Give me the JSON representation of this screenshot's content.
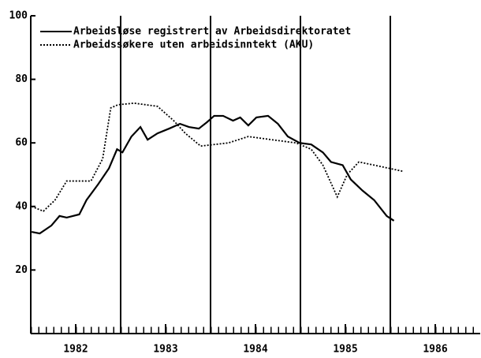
{
  "chart_data": {
    "type": "line",
    "xlim": [
      1982,
      1987
    ],
    "xticks": [
      {
        "value": 1982.5,
        "label": "1982"
      },
      {
        "value": 1983.5,
        "label": "1983"
      },
      {
        "value": 1984.5,
        "label": "1984"
      },
      {
        "value": 1985.5,
        "label": "1985"
      },
      {
        "value": 1986.5,
        "label": "1986"
      }
    ],
    "vlines": [
      1983,
      1984,
      1985,
      1986
    ],
    "ylim": [
      0,
      100
    ],
    "yticks": [
      20,
      40,
      60,
      80,
      100
    ],
    "legend": "upper left",
    "series": [
      {
        "name": "Arbeidsløse registrert av Arbeidsdirektoratet",
        "color": "#000000",
        "dash": "solid",
        "x": [
          1982.01,
          1982.1,
          1982.23,
          1982.32,
          1982.4,
          1982.54,
          1982.62,
          1982.75,
          1982.87,
          1982.96,
          1983.02,
          1983.12,
          1983.22,
          1983.3,
          1983.41,
          1983.54,
          1983.66,
          1983.76,
          1983.87,
          1983.96,
          1984.04,
          1984.14,
          1984.25,
          1984.33,
          1984.42,
          1984.51,
          1984.64,
          1984.75,
          1984.86,
          1984.99,
          1985.12,
          1985.25,
          1985.34,
          1985.47,
          1985.56,
          1985.69,
          1985.82,
          1985.96,
          1986.04
        ],
        "values": [
          32,
          31.5,
          34,
          37,
          36.5,
          37.5,
          42,
          47,
          52,
          58,
          57,
          62,
          65,
          61,
          63,
          64.5,
          66,
          65,
          64.5,
          66.5,
          68.5,
          68.5,
          67,
          68,
          65.5,
          68,
          68.5,
          66,
          62,
          60,
          59.5,
          57,
          54,
          53,
          48.5,
          45,
          42,
          37,
          35.5
        ]
      },
      {
        "name": "Arbeidssøkere uten arbeidsinntekt (AKU)",
        "color": "#000000",
        "dash": "dotted",
        "x": [
          1982.01,
          1982.14,
          1982.27,
          1982.4,
          1982.67,
          1982.8,
          1982.89,
          1982.97,
          1983.15,
          1983.41,
          1983.59,
          1983.72,
          1983.89,
          1984.2,
          1984.42,
          1984.68,
          1984.95,
          1985.12,
          1985.25,
          1985.41,
          1985.52,
          1985.65,
          1985.82,
          1986.15
        ],
        "values": [
          40,
          38.5,
          42,
          48,
          48,
          55,
          71,
          72,
          72.5,
          71.5,
          67,
          63,
          59,
          60,
          62,
          61,
          60,
          58,
          53,
          43,
          50,
          54,
          53,
          51
        ]
      }
    ]
  }
}
